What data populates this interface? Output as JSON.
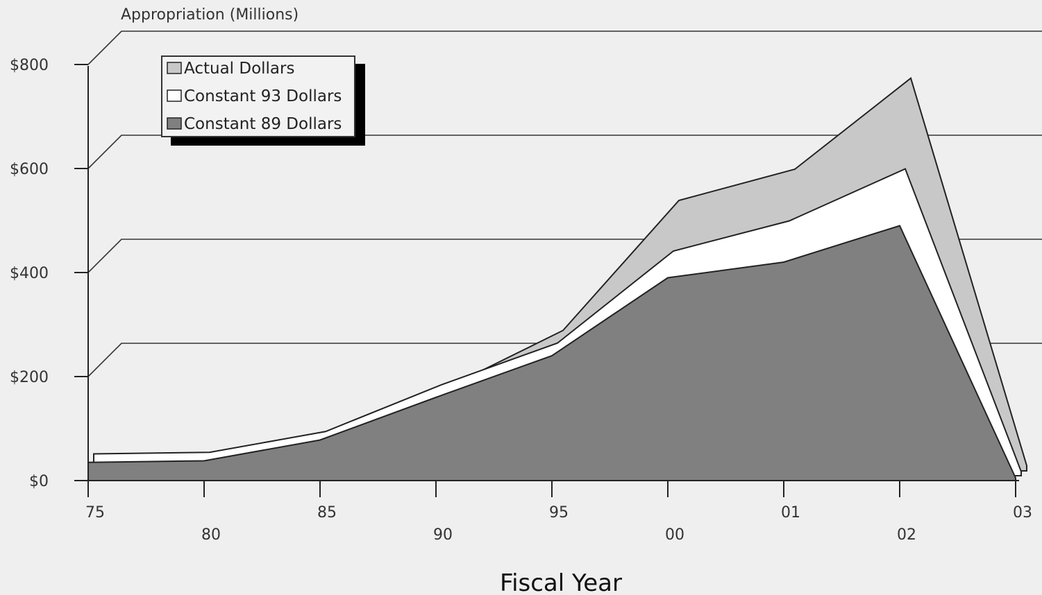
{
  "chart_data": {
    "type": "area",
    "title": "",
    "ylabel": "Appropriation  (Millions)",
    "xlabel": "Fiscal Year",
    "ylim": [
      0,
      800
    ],
    "y_ticks": [
      0,
      200,
      400,
      600,
      800
    ],
    "y_tick_labels": [
      "$0",
      "$200",
      "$400",
      "$600",
      "$800"
    ],
    "categories": [
      "75",
      "80",
      "85",
      "90",
      "95",
      "00",
      "01",
      "02",
      "03"
    ],
    "grid": true,
    "legend_position": "top-left",
    "series": [
      {
        "name": "Actual Dollars",
        "color": "#c8c8c8",
        "values": [
          30,
          32,
          72,
          160,
          270,
          520,
          580,
          755,
          10
        ]
      },
      {
        "name": "Constant 93 Dollars",
        "color": "#ffffff",
        "values": [
          42,
          45,
          85,
          175,
          255,
          432,
          490,
          590,
          8
        ]
      },
      {
        "name": "Constant 89 Dollars",
        "color": "#808080",
        "values": [
          35,
          38,
          78,
          160,
          240,
          390,
          420,
          490,
          5
        ]
      }
    ]
  }
}
